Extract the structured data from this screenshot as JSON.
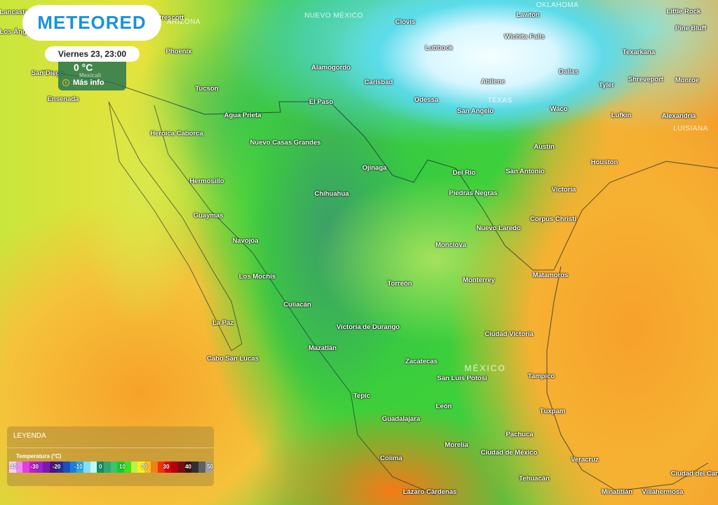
{
  "brand": {
    "logo_text": "METEORED"
  },
  "popup": {
    "datetime": "Viernes 23, 23:00",
    "temperature": "0 °C",
    "location": "Mexicali",
    "more_info": "Más info",
    "info_icon": "info-icon"
  },
  "legend": {
    "title": "LEYENDA",
    "subtitle": "Temperatura (°C)",
    "ticks": [
      "-40",
      "-30",
      "-20",
      "-10",
      "0",
      "10",
      "20",
      "30",
      "40",
      "50"
    ],
    "colors": [
      "#fbd0fb",
      "#f08cf0",
      "#e040e0",
      "#c020c8",
      "#a020d8",
      "#7a1ab0",
      "#501080",
      "#2a2a9a",
      "#1a50c0",
      "#1a80e0",
      "#20b0f0",
      "#80e0ff",
      "#c0f8ff",
      "#109060",
      "#30a870",
      "#40c070",
      "#10d020",
      "#40e020",
      "#c0f040",
      "#f8f020",
      "#f8c020",
      "#f08010",
      "#f03010",
      "#e00010",
      "#b00010",
      "#701010",
      "#401010",
      "#303030",
      "#606060",
      "#a0a0a0"
    ]
  },
  "regions": [
    "ARIZONA",
    "NUEVO MÉXICO",
    "OKLAHOMA",
    "TEXAS",
    "LUISIANA",
    "MÉXICO"
  ],
  "cities": [
    "Lancaster",
    "Los Ángeles",
    "Prescott",
    "Phoenix",
    "San Diego",
    "Ensenada",
    "Tucson",
    "Alamogordo",
    "Carlsbad",
    "Clovis",
    "Lubbock",
    "Lawton",
    "Wichita Falls",
    "Little Rock",
    "Pine Bluff",
    "Texarkana",
    "Dallas",
    "Abilene",
    "Tyler",
    "Shreveport",
    "Monroe",
    "Odessa",
    "San Angelo",
    "Waco",
    "Lufkin",
    "Alexandria",
    "El Paso",
    "Agua Prieta",
    "Heroica Caborca",
    "Nuevo Casas Grandes",
    "Austin",
    "Houston",
    "Ojinaga",
    "Del Rio",
    "San Antonio",
    "Hermosillo",
    "Chihuahua",
    "Piedras Negras",
    "Victoria",
    "Guaymas",
    "Corpus Christi",
    "Nuevo Laredo",
    "Navojoa",
    "Monclova",
    "Los Mochis",
    "Matamoros",
    "Monterrey",
    "Torreón",
    "Culiacán",
    "La Paz",
    "Victoria de Durango",
    "Ciudad Victoria",
    "Mazatlán",
    "Cabo San Lucas",
    "Zacatecas",
    "San Luis Potosí",
    "Tampico",
    "Tepic",
    "León",
    "Túxpam",
    "Guadalajara",
    "Pachuca",
    "Morelia",
    "Ciudad de México",
    "Veracruz",
    "Colima",
    "Tehuacán",
    "Lázaro Cárdenas",
    "Minatitlán",
    "Villahermosa",
    "Ciudad del Carmen"
  ]
}
